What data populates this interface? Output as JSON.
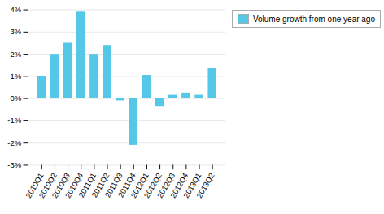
{
  "chart_data": {
    "type": "bar",
    "categories": [
      "2010Q1",
      "2010Q2",
      "2010Q3",
      "2010Q4",
      "2011Q1",
      "2011Q2",
      "2011Q3",
      "2011Q4",
      "2012Q1",
      "2012Q2",
      "2012Q3",
      "2012Q4",
      "2013Q1",
      "2013Q2"
    ],
    "series": [
      {
        "name": "Volume growth from one year ago",
        "color": "#55C8E8",
        "values": [
          1.0,
          2.0,
          2.5,
          3.9,
          2.0,
          2.4,
          -0.1,
          -2.1,
          1.05,
          -0.35,
          0.15,
          0.25,
          0.15,
          1.35
        ]
      }
    ],
    "ylim": [
      -3,
      4
    ],
    "yticks": [
      {
        "value": -3,
        "label": "-3%"
      },
      {
        "value": -2,
        "label": "-2%"
      },
      {
        "value": -1,
        "label": "-1%"
      },
      {
        "value": 0,
        "label": "0%"
      },
      {
        "value": 1,
        "label": "1%"
      },
      {
        "value": 2,
        "label": "2%"
      },
      {
        "value": 3,
        "label": "3%"
      },
      {
        "value": 4,
        "label": "4%"
      }
    ],
    "grid": true,
    "legend": "right"
  }
}
